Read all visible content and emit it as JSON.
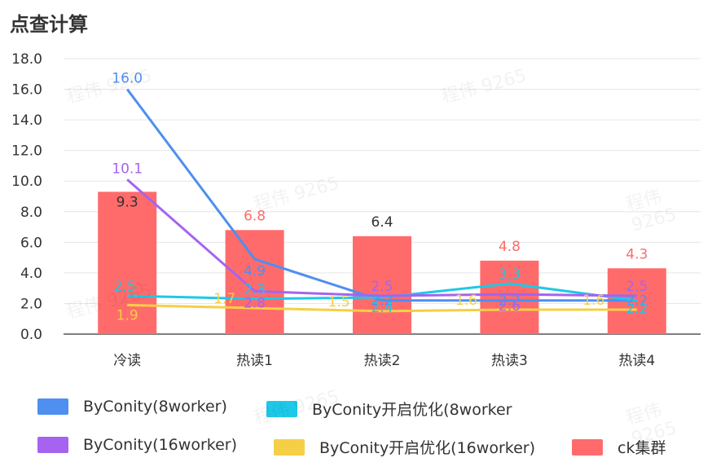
{
  "title": "点查计算",
  "watermark": "程伟 9265",
  "chart_data": {
    "type": "bar+line",
    "categories": [
      "冷读",
      "热读1",
      "热读2",
      "热读3",
      "热读4"
    ],
    "ylim": [
      0,
      18
    ],
    "yticks": [
      "0.0",
      "2.0",
      "4.0",
      "6.0",
      "8.0",
      "10.0",
      "12.0",
      "14.0",
      "16.0",
      "18.0"
    ],
    "grid": true,
    "legend_position": "bottom",
    "bars": {
      "name": "ck集群",
      "color": "#ff6b6b",
      "values": [
        9.3,
        6.8,
        6.4,
        4.8,
        4.3
      ],
      "labels": [
        "9.3",
        "6.8",
        "6.4",
        "4.8",
        "4.3"
      ]
    },
    "series": [
      {
        "name": "ByConity(8worker)",
        "color": "#4e8ff0",
        "values": [
          16.0,
          4.9,
          2.2,
          2.2,
          2.2
        ],
        "labels": [
          "16.0",
          "4.9",
          "2.2",
          "2.2",
          "2.2"
        ]
      },
      {
        "name": "ByConity开启优化(8worker",
        "color": "#1ec8e8",
        "values": [
          2.5,
          2.3,
          2.4,
          3.3,
          2.2
        ],
        "labels": [
          "2.5",
          "2.3",
          "2.4",
          "3.3",
          "2.2"
        ]
      },
      {
        "name": "ByConity(16worker)",
        "color": "#a563f0",
        "values": [
          10.1,
          2.8,
          2.5,
          2.6,
          2.5
        ],
        "labels": [
          "10.1",
          "2.8",
          "2.5",
          "2.6",
          "2.5"
        ]
      },
      {
        "name": "ByConity开启优化(16worker)",
        "color": "#f5cf45",
        "values": [
          1.9,
          1.7,
          1.5,
          1.6,
          1.6
        ],
        "labels": [
          "1.9",
          "1.7",
          "1.5",
          "1.6",
          "1.6"
        ]
      }
    ]
  }
}
